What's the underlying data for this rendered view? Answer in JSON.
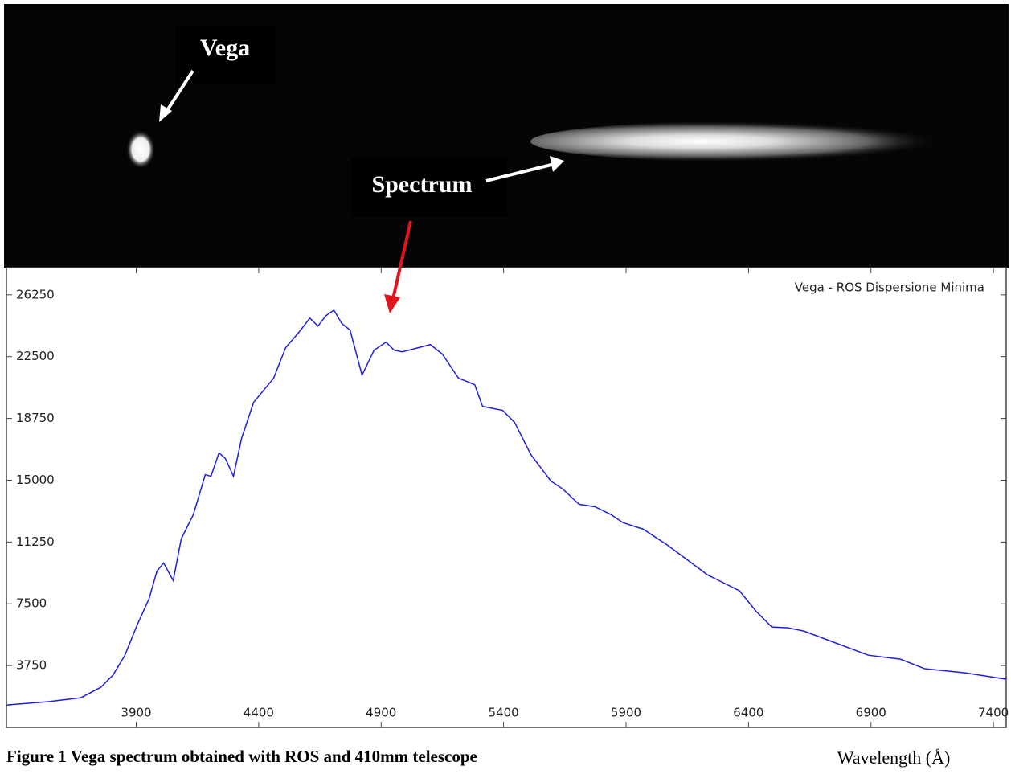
{
  "chart_data": {
    "type": "line",
    "title": "Vega - ROS Dispersione Minima",
    "caption": "Figure 1  Vega spectrum obtained with ROS and 410mm telescope",
    "x_label": "Wavelength (Å)",
    "annotations": [
      "Vega",
      "Spectrum"
    ],
    "x": [
      3372,
      3542,
      3674,
      3756,
      3805,
      3854,
      3903,
      3952,
      3985,
      4012,
      4051,
      4084,
      4133,
      4182,
      4205,
      4238,
      4264,
      4297,
      4330,
      4379,
      4461,
      4510,
      4566,
      4609,
      4642,
      4674,
      4707,
      4740,
      4773,
      4822,
      4871,
      4920,
      4953,
      4986,
      5052,
      5101,
      5150,
      5216,
      5282,
      5314,
      5396,
      5445,
      5511,
      5593,
      5642,
      5708,
      5773,
      5839,
      5888,
      5970,
      6069,
      6167,
      6233,
      6364,
      6430,
      6495,
      6561,
      6627,
      6758,
      6889,
      7020,
      7119,
      7283,
      7453
    ],
    "series": [
      {
        "color": "#1f1fe0",
        "values": [
          1360,
          1560,
          1800,
          2440,
          3170,
          4380,
          6190,
          7790,
          9500,
          9980,
          8910,
          11450,
          12910,
          15340,
          15240,
          16660,
          16320,
          15240,
          17530,
          19720,
          21190,
          23040,
          24010,
          24840,
          24350,
          24980,
          25320,
          24500,
          24110,
          21380,
          22890,
          23380,
          22890,
          22790,
          23040,
          23230,
          22650,
          21190,
          20800,
          19480,
          19240,
          18510,
          16560,
          14950,
          14460,
          13540,
          13390,
          12910,
          12420,
          12030,
          11060,
          9980,
          9250,
          8280,
          7060,
          6090,
          6040,
          5840,
          5110,
          4380,
          4140,
          3560,
          3310,
          2920
        ]
      }
    ],
    "xlim": [
      3370,
      7452
    ],
    "ylim": [
      0,
      27900
    ],
    "xticks": [
      3900,
      4400,
      4900,
      5400,
      5900,
      6400,
      6900,
      7400
    ],
    "yticks": [
      3750,
      7500,
      11250,
      15000,
      18750,
      22500,
      26250
    ]
  }
}
